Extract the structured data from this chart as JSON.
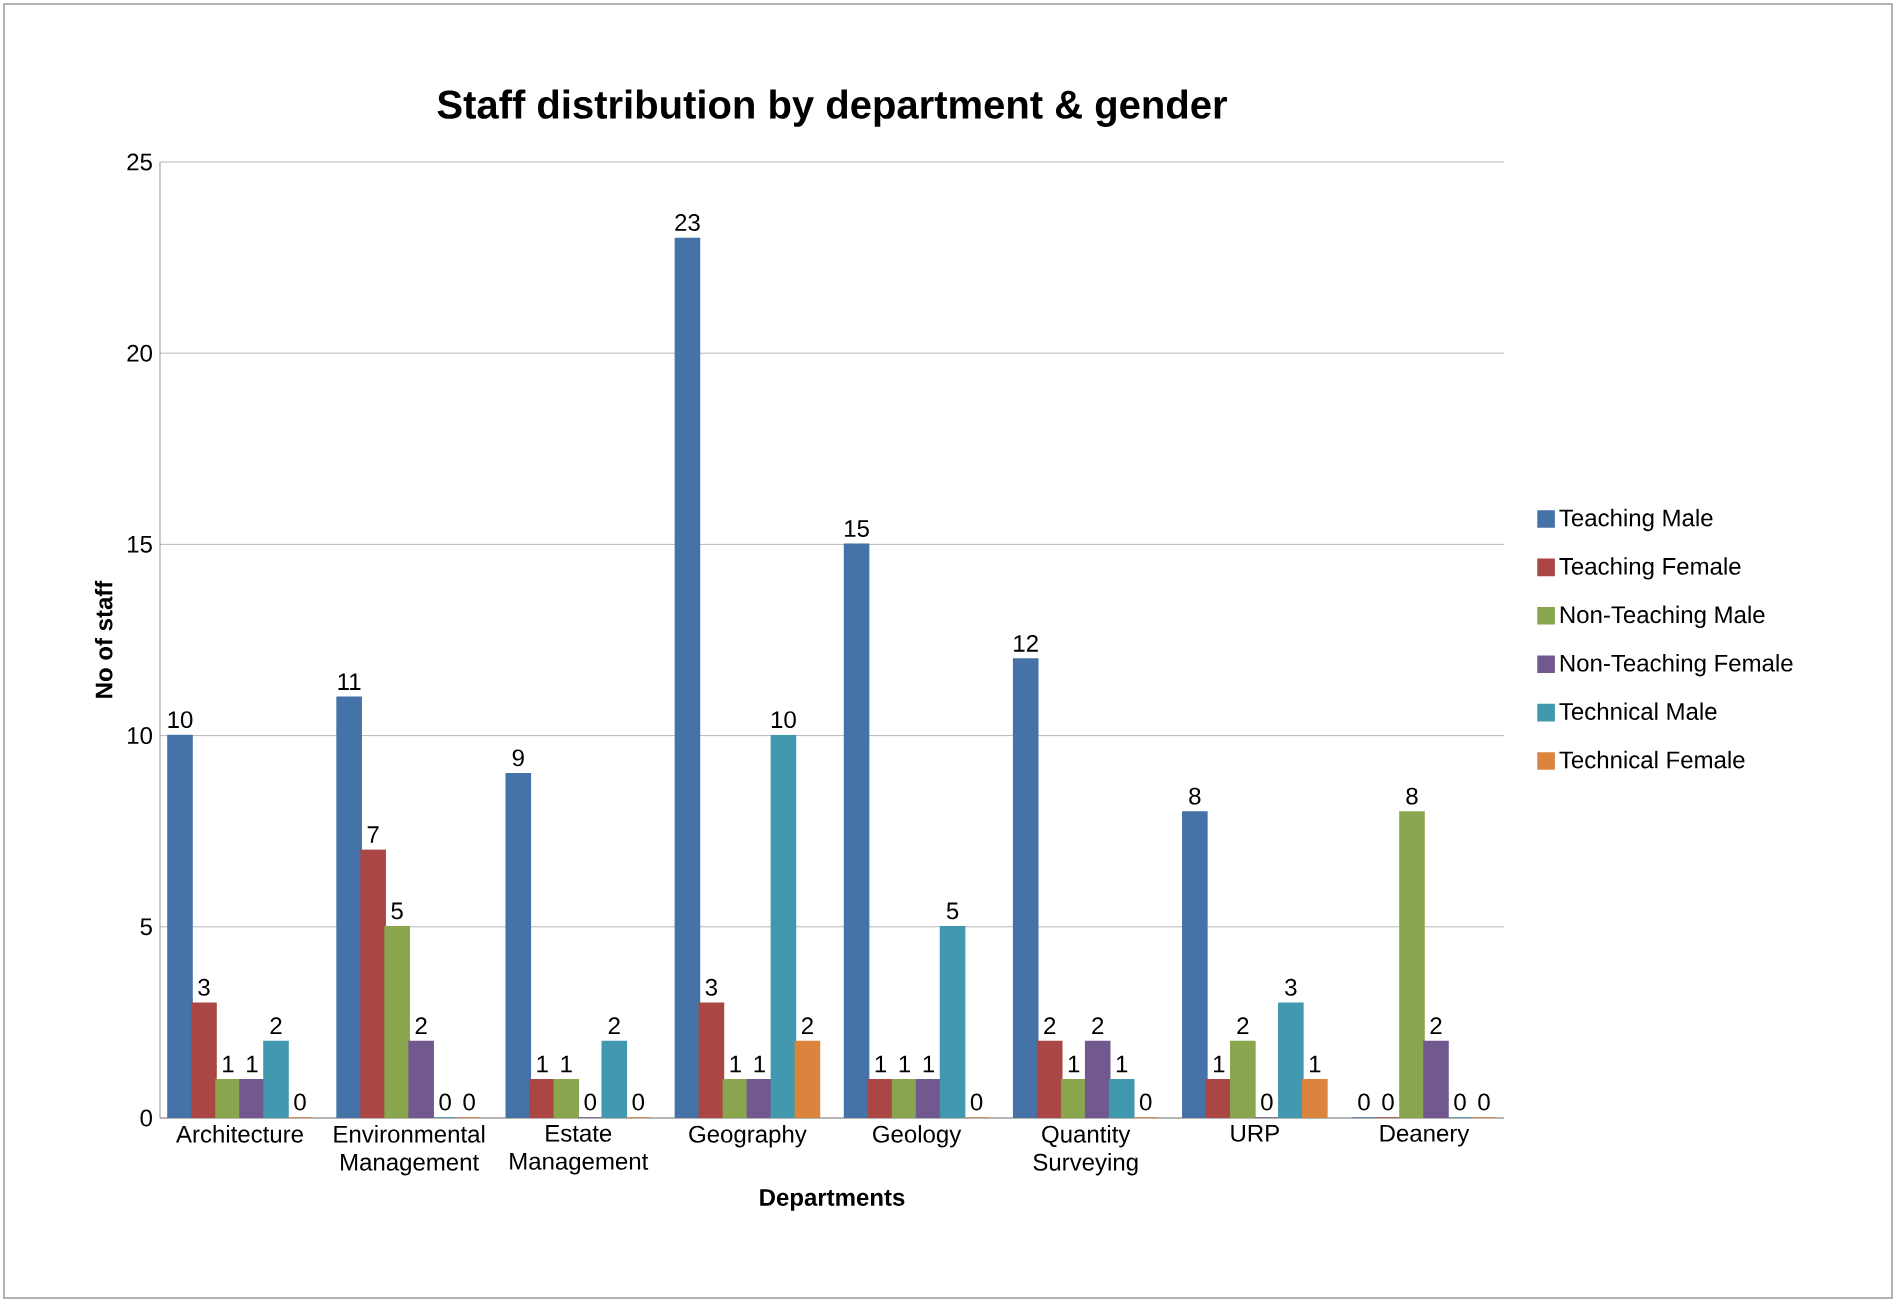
{
  "chart_data": {
    "type": "bar",
    "title": "Staff distribution by department & gender",
    "xlabel": "Departments",
    "ylabel": "No of staff",
    "categories": [
      "Architecture",
      "Environmental Management",
      "Estate Management",
      "Geography",
      "Geology",
      "Quantity Surveying",
      "URP",
      "Deanery"
    ],
    "series": [
      {
        "name": "Teaching Male",
        "color": "#4572a7",
        "values": [
          10,
          11,
          9,
          23,
          15,
          12,
          8,
          0
        ]
      },
      {
        "name": "Teaching Female",
        "color": "#aa4643",
        "values": [
          3,
          7,
          1,
          3,
          1,
          2,
          1,
          0
        ]
      },
      {
        "name": "Non-Teaching Male",
        "color": "#89a54e",
        "values": [
          1,
          5,
          1,
          1,
          1,
          1,
          2,
          8
        ]
      },
      {
        "name": "Non-Teaching Female",
        "color": "#71588f",
        "values": [
          1,
          2,
          0,
          1,
          1,
          2,
          0,
          2
        ]
      },
      {
        "name": "Technical Male",
        "color": "#4198af",
        "values": [
          2,
          0,
          2,
          10,
          5,
          1,
          3,
          0
        ]
      },
      {
        "name": "Technical Female",
        "color": "#db843d",
        "values": [
          0,
          0,
          0,
          2,
          0,
          0,
          1,
          0
        ]
      }
    ],
    "ylim": [
      0,
      25
    ],
    "yticks": [
      0,
      5,
      10,
      15,
      20,
      25
    ],
    "grid": "y",
    "legend": "right",
    "data_labels": true
  }
}
